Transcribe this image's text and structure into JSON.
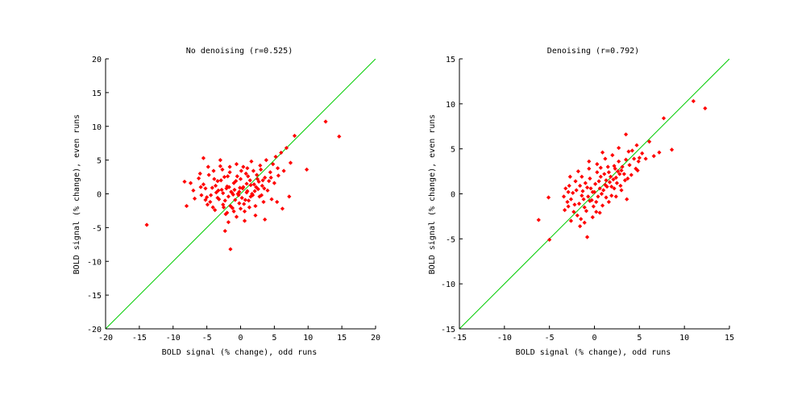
{
  "chart_data": [
    {
      "type": "scatter",
      "title": "No denoising (r=0.525)",
      "xlabel": "BOLD signal (% change), odd runs",
      "ylabel": "BOLD signal (% change), even runs",
      "xlim": [
        -20,
        20
      ],
      "ylim": [
        -20,
        20
      ],
      "xticks": [
        -20,
        -15,
        -10,
        -5,
        0,
        5,
        10,
        15,
        20
      ],
      "yticks": [
        -20,
        -15,
        -10,
        -5,
        0,
        5,
        10,
        15,
        20
      ],
      "grid": false,
      "marker_color": "#ff0000",
      "identity_line_color": "#00cc00",
      "identity_line": [
        [
          -20,
          -20
        ],
        [
          20,
          20
        ]
      ],
      "points": [
        [
          -13.9,
          -4.6
        ],
        [
          12.6,
          10.7
        ],
        [
          14.6,
          8.5
        ],
        [
          9.8,
          3.6
        ],
        [
          -1.5,
          -8.2
        ],
        [
          -2.3,
          -5.5
        ],
        [
          -8.3,
          1.8
        ],
        [
          -8.0,
          -1.8
        ],
        [
          -7.0,
          0.5
        ],
        [
          -6.8,
          -0.7
        ],
        [
          -6.2,
          2.3
        ],
        [
          -5.8,
          -0.2
        ],
        [
          -5.5,
          1.4
        ],
        [
          -5.2,
          0.8
        ],
        [
          -5.0,
          -0.5
        ],
        [
          -5.5,
          5.3
        ],
        [
          -4.7,
          2.8
        ],
        [
          -4.5,
          -1.2
        ],
        [
          -4.2,
          0.9
        ],
        [
          -4.0,
          3.4
        ],
        [
          -3.8,
          -2.4
        ],
        [
          -3.6,
          0.2
        ],
        [
          -3.4,
          1.9
        ],
        [
          -3.2,
          -0.8
        ],
        [
          -3.0,
          4.1
        ],
        [
          -2.8,
          0.6
        ],
        [
          -2.6,
          -1.6
        ],
        [
          -2.4,
          2.5
        ],
        [
          -2.2,
          -3.0
        ],
        [
          -2.0,
          1.1
        ],
        [
          -1.8,
          -0.4
        ],
        [
          -1.6,
          3.2
        ],
        [
          -1.4,
          0.3
        ],
        [
          -1.2,
          -2.1
        ],
        [
          -1.0,
          1.6
        ],
        [
          -0.8,
          -0.9
        ],
        [
          -0.6,
          4.4
        ],
        [
          -0.4,
          0.0
        ],
        [
          -0.2,
          -1.4
        ],
        [
          0.0,
          2.2
        ],
        [
          0.2,
          -0.6
        ],
        [
          0.4,
          1.0
        ],
        [
          0.6,
          -2.6
        ],
        [
          0.8,
          3.0
        ],
        [
          1.0,
          0.4
        ],
        [
          1.2,
          -1.0
        ],
        [
          1.4,
          2.0
        ],
        [
          1.6,
          4.8
        ],
        [
          1.8,
          -0.2
        ],
        [
          2.0,
          1.4
        ],
        [
          2.2,
          -1.8
        ],
        [
          2.4,
          2.8
        ],
        [
          2.6,
          0.7
        ],
        [
          2.8,
          -0.4
        ],
        [
          3.0,
          3.6
        ],
        [
          3.2,
          1.2
        ],
        [
          3.4,
          -1.2
        ],
        [
          3.6,
          2.4
        ],
        [
          3.8,
          5.0
        ],
        [
          4.0,
          0.5
        ],
        [
          4.2,
          1.9
        ],
        [
          4.4,
          3.2
        ],
        [
          4.6,
          -0.8
        ],
        [
          4.8,
          4.4
        ],
        [
          5.0,
          1.6
        ],
        [
          5.2,
          5.5
        ],
        [
          5.6,
          2.7
        ],
        [
          6.0,
          6.1
        ],
        [
          6.4,
          3.4
        ],
        [
          6.8,
          6.8
        ],
        [
          7.4,
          4.6
        ],
        [
          8.0,
          8.6
        ],
        [
          5.4,
          -1.2
        ],
        [
          6.2,
          -2.2
        ],
        [
          7.2,
          -0.4
        ],
        [
          3.6,
          -3.8
        ],
        [
          2.2,
          -3.2
        ],
        [
          0.6,
          -4.0
        ],
        [
          -0.6,
          -3.4
        ],
        [
          -1.8,
          -4.2
        ],
        [
          -3.0,
          5.0
        ],
        [
          -4.8,
          4.0
        ],
        [
          -6.0,
          3.0
        ],
        [
          -7.4,
          1.6
        ],
        [
          -2.6,
          0.1
        ],
        [
          -1.7,
          1.0
        ],
        [
          -0.9,
          0.6
        ],
        [
          -0.3,
          -0.2
        ],
        [
          0.3,
          0.8
        ],
        [
          0.9,
          0.2
        ],
        [
          1.5,
          1.3
        ],
        [
          2.1,
          0.4
        ],
        [
          2.7,
          1.8
        ],
        [
          3.3,
          2.0
        ],
        [
          -3.4,
          -0.6
        ],
        [
          -2.3,
          -1.0
        ],
        [
          -1.3,
          0.2
        ],
        [
          -0.7,
          1.9
        ],
        [
          0.5,
          -1.5
        ],
        [
          1.1,
          2.6
        ],
        [
          1.9,
          3.4
        ],
        [
          2.9,
          4.2
        ],
        [
          -4.4,
          -0.2
        ],
        [
          -3.7,
          1.2
        ],
        [
          -2.9,
          2.0
        ],
        [
          -2.1,
          0.8
        ],
        [
          -1.5,
          -1.8
        ],
        [
          -0.5,
          2.6
        ],
        [
          0.1,
          3.4
        ],
        [
          0.7,
          -0.9
        ],
        [
          1.3,
          -2.0
        ],
        [
          1.7,
          0.0
        ],
        [
          2.3,
          1.0
        ],
        [
          3.1,
          -0.2
        ],
        [
          -5.9,
          1.0
        ],
        [
          -4.9,
          -1.6
        ],
        [
          -3.9,
          2.2
        ],
        [
          -3.3,
          0.5
        ],
        [
          -2.5,
          -2.0
        ],
        [
          -1.9,
          2.6
        ],
        [
          -1.1,
          -0.1
        ],
        [
          -0.1,
          0.9
        ],
        [
          0.9,
          1.5
        ],
        [
          1.5,
          -0.4
        ],
        [
          2.5,
          2.2
        ],
        [
          3.5,
          0.8
        ],
        [
          4.5,
          2.4
        ],
        [
          5.5,
          3.8
        ],
        [
          -2.0,
          -2.8
        ],
        [
          -1.0,
          -2.6
        ],
        [
          0.0,
          -2.2
        ],
        [
          -2.7,
          3.6
        ],
        [
          -1.6,
          4.0
        ],
        [
          0.4,
          4.0
        ],
        [
          1.0,
          3.8
        ],
        [
          -5.2,
          -0.9
        ],
        [
          -4.1,
          -2.0
        ],
        [
          -0.2,
          0.3
        ]
      ]
    },
    {
      "type": "scatter",
      "title": "Denoising (r=0.792)",
      "xlabel": "BOLD signal (% change), odd runs",
      "ylabel": "BOLD signal (% change), even runs",
      "xlim": [
        -15,
        15
      ],
      "ylim": [
        -15,
        15
      ],
      "xticks": [
        -15,
        -10,
        -5,
        0,
        5,
        10,
        15
      ],
      "yticks": [
        -15,
        -10,
        -5,
        0,
        5,
        10,
        15
      ],
      "grid": false,
      "marker_color": "#ff0000",
      "identity_line_color": "#00cc00",
      "identity_line": [
        [
          -15,
          -15
        ],
        [
          15,
          15
        ]
      ],
      "points": [
        [
          -6.2,
          -2.9
        ],
        [
          -5.0,
          -5.1
        ],
        [
          -5.1,
          -0.4
        ],
        [
          11.0,
          10.3
        ],
        [
          12.3,
          9.5
        ],
        [
          8.6,
          4.9
        ],
        [
          7.7,
          8.4
        ],
        [
          7.2,
          4.6
        ],
        [
          6.6,
          4.2
        ],
        [
          6.1,
          5.8
        ],
        [
          5.7,
          3.9
        ],
        [
          5.3,
          4.5
        ],
        [
          4.9,
          3.6
        ],
        [
          4.6,
          2.8
        ],
        [
          3.5,
          6.6
        ],
        [
          4.1,
          2.1
        ],
        [
          3.8,
          4.7
        ],
        [
          3.4,
          1.5
        ],
        [
          3.1,
          3.0
        ],
        [
          2.8,
          2.2
        ],
        [
          2.5,
          1.2
        ],
        [
          2.2,
          3.1
        ],
        [
          1.9,
          0.8
        ],
        [
          1.6,
          2.4
        ],
        [
          1.3,
          1.5
        ],
        [
          1.0,
          0.4
        ],
        [
          0.7,
          1.9
        ],
        [
          0.4,
          -0.3
        ],
        [
          0.1,
          1.1
        ],
        [
          -0.2,
          0.2
        ],
        [
          -0.5,
          -0.8
        ],
        [
          -0.8,
          0.7
        ],
        [
          -1.1,
          -1.5
        ],
        [
          -1.4,
          -0.2
        ],
        [
          -1.7,
          -1.1
        ],
        [
          -2.0,
          0.4
        ],
        [
          -2.3,
          -2.0
        ],
        [
          -2.6,
          -0.6
        ],
        [
          -2.9,
          -1.4
        ],
        [
          -3.2,
          0.6
        ],
        [
          -2.6,
          -3.0
        ],
        [
          -1.6,
          -3.6
        ],
        [
          -0.8,
          -4.8
        ],
        [
          -0.2,
          -2.6
        ],
        [
          0.6,
          -2.1
        ],
        [
          1.6,
          -0.9
        ],
        [
          2.4,
          -0.3
        ],
        [
          3.0,
          0.4
        ],
        [
          3.6,
          -0.6
        ],
        [
          -1.4,
          1.9
        ],
        [
          -0.6,
          2.8
        ],
        [
          0.3,
          3.3
        ],
        [
          1.2,
          3.9
        ],
        [
          2.0,
          4.3
        ],
        [
          2.7,
          5.1
        ],
        [
          -2.1,
          1.4
        ],
        [
          -2.8,
          0.9
        ],
        [
          -3.0,
          -0.9
        ],
        [
          -1.9,
          -2.4
        ],
        [
          -1.2,
          -0.6
        ],
        [
          -0.4,
          0.6
        ],
        [
          0.2,
          -0.9
        ],
        [
          0.8,
          0.0
        ],
        [
          1.4,
          0.8
        ],
        [
          2.1,
          1.6
        ],
        [
          2.6,
          2.5
        ],
        [
          3.3,
          2.2
        ],
        [
          3.9,
          3.2
        ],
        [
          4.4,
          3.9
        ],
        [
          -0.9,
          -1.9
        ],
        [
          -0.1,
          -1.4
        ],
        [
          0.5,
          1.4
        ],
        [
          1.1,
          2.2
        ],
        [
          1.7,
          1.3
        ],
        [
          2.3,
          2.8
        ],
        [
          -1.6,
          0.9
        ],
        [
          -2.4,
          0.1
        ],
        [
          -0.7,
          -0.3
        ],
        [
          0.9,
          -1.3
        ],
        [
          1.5,
          3.0
        ],
        [
          -1.0,
          1.2
        ],
        [
          -3.4,
          -0.3
        ],
        [
          -2.2,
          -1.2
        ],
        [
          0.0,
          0.2
        ],
        [
          0.6,
          0.6
        ],
        [
          1.2,
          1.0
        ],
        [
          1.8,
          1.9
        ],
        [
          2.4,
          1.8
        ],
        [
          3.0,
          2.6
        ],
        [
          -1.3,
          0.3
        ],
        [
          -0.3,
          -0.7
        ],
        [
          0.3,
          2.4
        ],
        [
          4.8,
          2.6
        ],
        [
          5.0,
          4.0
        ],
        [
          -2.7,
          1.9
        ],
        [
          -1.8,
          2.5
        ],
        [
          -3.3,
          -1.8
        ],
        [
          -1.5,
          -2.8
        ],
        [
          0.2,
          -2.0
        ],
        [
          1.9,
          -0.2
        ],
        [
          2.9,
          0.9
        ],
        [
          3.7,
          1.7
        ],
        [
          -0.6,
          3.6
        ],
        [
          0.9,
          4.6
        ],
        [
          -1.1,
          -3.2
        ],
        [
          -2.9,
          0.2
        ],
        [
          -0.5,
          1.7
        ],
        [
          0.7,
          2.9
        ],
        [
          1.3,
          -0.4
        ],
        [
          2.2,
          0.6
        ],
        [
          2.7,
          3.6
        ],
        [
          3.5,
          3.8
        ],
        [
          4.2,
          4.8
        ],
        [
          4.7,
          5.4
        ]
      ]
    }
  ]
}
